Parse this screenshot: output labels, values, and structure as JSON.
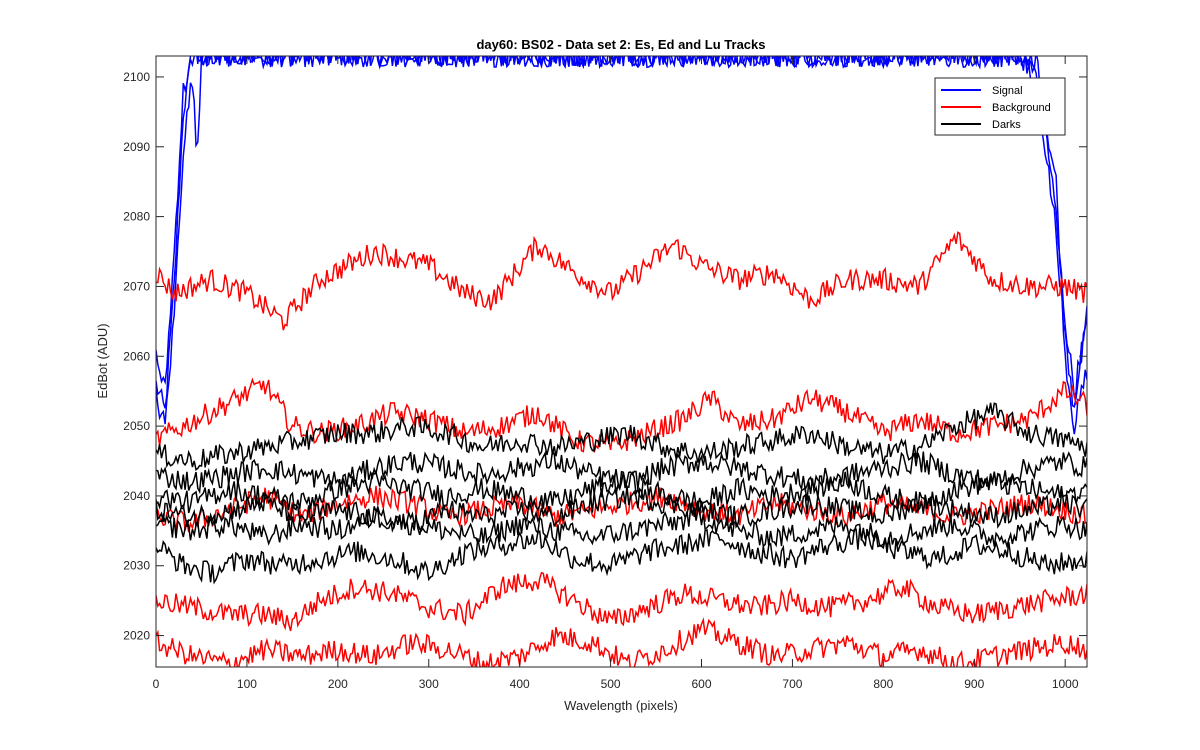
{
  "chart_data": {
    "type": "line",
    "title": "day60: BS02 - Data set 2: Es, Ed and Lu Tracks",
    "xlabel": "Wavelength (pixels)",
    "ylabel": "EdBot (ADU)",
    "xlim": [
      0,
      1024
    ],
    "ylim": [
      2015.5,
      2103
    ],
    "xticks": [
      0,
      100,
      200,
      300,
      400,
      500,
      600,
      700,
      800,
      900,
      1000
    ],
    "yticks": [
      2020,
      2030,
      2040,
      2050,
      2060,
      2070,
      2080,
      2090,
      2100
    ],
    "grid": false,
    "legend": {
      "position": "top-right",
      "entries": [
        {
          "label": "Signal",
          "color": "#0000ff"
        },
        {
          "label": "Background",
          "color": "#ff0000"
        },
        {
          "label": "Darks",
          "color": "#000000"
        }
      ]
    },
    "series": [
      {
        "group": "Signal",
        "color": "#0000ff",
        "x": [
          0,
          10,
          20,
          30,
          40,
          50,
          100,
          500,
          900,
          950,
          970,
          990,
          1000,
          1010,
          1024
        ],
        "y": [
          2056,
          2052,
          2070,
          2095,
          2103,
          2103,
          2103,
          2103,
          2103,
          2103,
          2100,
          2085,
          2060,
          2050,
          2058
        ]
      },
      {
        "group": "Signal",
        "color": "#0000ff",
        "x": [
          0,
          10,
          20,
          30,
          40,
          50,
          100,
          500,
          900,
          950,
          970,
          990,
          1000,
          1010,
          1024
        ],
        "y": [
          2060,
          2055,
          2075,
          2098,
          2103,
          2103,
          2103,
          2103,
          2103,
          2103,
          2102,
          2080,
          2065,
          2055,
          2065
        ]
      },
      {
        "group": "Signal",
        "color": "#0000ff",
        "x": [
          0,
          10,
          20,
          30,
          40,
          45,
          50,
          100,
          500,
          900,
          950,
          970,
          990,
          1000,
          1010,
          1024
        ],
        "y": [
          2054,
          2050,
          2066,
          2090,
          2100,
          2088,
          2103,
          2103,
          2103,
          2103,
          2103,
          2098,
          2078,
          2062,
          2052,
          2068
        ]
      },
      {
        "group": "Background",
        "color": "#ff0000",
        "x": [
          0,
          20,
          60,
          100,
          140,
          180,
          240,
          300,
          340,
          370,
          420,
          460,
          500,
          530,
          570,
          600,
          640,
          680,
          720,
          760,
          800,
          840,
          880,
          920,
          960,
          1000,
          1024
        ],
        "y": [
          2072,
          2069,
          2071,
          2069,
          2065,
          2071,
          2075,
          2073,
          2069,
          2068,
          2076,
          2072,
          2069,
          2072,
          2076,
          2073,
          2071,
          2072,
          2068,
          2071,
          2071,
          2070,
          2077,
          2071,
          2070,
          2070,
          2069
        ]
      },
      {
        "group": "Background",
        "color": "#ff0000",
        "x": [
          0,
          30,
          60,
          90,
          120,
          150,
          180,
          220,
          260,
          300,
          340,
          380,
          420,
          460,
          500,
          540,
          580,
          610,
          640,
          680,
          720,
          760,
          800,
          840,
          880,
          920,
          960,
          1000,
          1024
        ],
        "y": [
          2048,
          2050,
          2052,
          2054,
          2056,
          2050,
          2049,
          2050,
          2052,
          2051,
          2049,
          2050,
          2052,
          2048,
          2047,
          2049,
          2051,
          2054,
          2050,
          2051,
          2054,
          2052,
          2049,
          2051,
          2049,
          2050,
          2051,
          2055,
          2053
        ]
      },
      {
        "group": "Background",
        "color": "#ff0000",
        "x": [
          0,
          40,
          80,
          120,
          160,
          200,
          240,
          280,
          320,
          360,
          400,
          440,
          480,
          520,
          560,
          600,
          640,
          680,
          720,
          760,
          800,
          840,
          880,
          920,
          960,
          1000,
          1024
        ],
        "y": [
          2037,
          2036,
          2038,
          2040,
          2037,
          2039,
          2040,
          2039,
          2037,
          2038,
          2039,
          2037,
          2038,
          2039,
          2040,
          2038,
          2037,
          2039,
          2038,
          2037,
          2039,
          2038,
          2037,
          2038,
          2039,
          2038,
          2037
        ]
      },
      {
        "group": "Background",
        "color": "#ff0000",
        "x": [
          0,
          40,
          80,
          120,
          150,
          180,
          220,
          260,
          300,
          340,
          380,
          420,
          460,
          500,
          540,
          580,
          620,
          660,
          700,
          740,
          780,
          820,
          860,
          900,
          940,
          980,
          1024
        ],
        "y": [
          2025,
          2024,
          2023,
          2023,
          2022,
          2025,
          2027,
          2026,
          2024,
          2023,
          2027,
          2028,
          2025,
          2022,
          2024,
          2026,
          2025,
          2024,
          2025,
          2024,
          2025,
          2027,
          2024,
          2023,
          2024,
          2025,
          2026
        ]
      },
      {
        "group": "Background",
        "color": "#ff0000",
        "x": [
          0,
          40,
          80,
          120,
          160,
          200,
          240,
          280,
          320,
          360,
          400,
          440,
          480,
          520,
          560,
          600,
          640,
          680,
          720,
          760,
          800,
          840,
          880,
          920,
          960,
          1000,
          1024
        ],
        "y": [
          2019,
          2017,
          2016,
          2018,
          2017,
          2018,
          2017,
          2019,
          2018,
          2016,
          2017,
          2020,
          2019,
          2016,
          2018,
          2021,
          2019,
          2017,
          2018,
          2019,
          2017,
          2018,
          2016,
          2017,
          2018,
          2019,
          2018
        ]
      },
      {
        "group": "Darks",
        "color": "#000000",
        "x": [
          0,
          40,
          80,
          120,
          160,
          200,
          240,
          280,
          320,
          360,
          400,
          440,
          480,
          520,
          560,
          600,
          640,
          680,
          720,
          760,
          800,
          840,
          880,
          920,
          960,
          1000,
          1024
        ],
        "y": [
          2046,
          2045,
          2046,
          2047,
          2048,
          2049,
          2049,
          2050,
          2049,
          2047,
          2048,
          2047,
          2048,
          2049,
          2047,
          2046,
          2047,
          2048,
          2049,
          2047,
          2046,
          2047,
          2050,
          2052,
          2049,
          2048,
          2047
        ]
      },
      {
        "group": "Darks",
        "color": "#000000",
        "x": [
          0,
          40,
          80,
          120,
          160,
          200,
          240,
          280,
          320,
          360,
          400,
          440,
          480,
          520,
          560,
          600,
          640,
          680,
          720,
          760,
          800,
          840,
          880,
          920,
          960,
          1000,
          1024
        ],
        "y": [
          2043,
          2042,
          2043,
          2044,
          2043,
          2042,
          2044,
          2045,
          2044,
          2043,
          2044,
          2045,
          2043,
          2042,
          2044,
          2045,
          2044,
          2043,
          2042,
          2043,
          2044,
          2045,
          2043,
          2042,
          2044,
          2045,
          2044
        ]
      },
      {
        "group": "Darks",
        "color": "#000000",
        "x": [
          0,
          40,
          80,
          120,
          160,
          200,
          240,
          280,
          320,
          360,
          400,
          440,
          480,
          520,
          560,
          600,
          640,
          680,
          720,
          760,
          800,
          840,
          880,
          920,
          960,
          1000,
          1024
        ],
        "y": [
          2040,
          2039,
          2041,
          2040,
          2039,
          2041,
          2042,
          2041,
          2040,
          2041,
          2040,
          2039,
          2041,
          2042,
          2040,
          2039,
          2041,
          2040,
          2041,
          2042,
          2040,
          2039,
          2041,
          2042,
          2041,
          2040,
          2041
        ]
      },
      {
        "group": "Darks",
        "color": "#000000",
        "x": [
          0,
          40,
          80,
          120,
          160,
          200,
          240,
          280,
          320,
          360,
          400,
          440,
          480,
          520,
          560,
          600,
          640,
          680,
          720,
          760,
          800,
          840,
          880,
          920,
          960,
          1000,
          1024
        ],
        "y": [
          2038,
          2037,
          2038,
          2039,
          2037,
          2038,
          2037,
          2036,
          2038,
          2037,
          2038,
          2037,
          2039,
          2040,
          2039,
          2038,
          2037,
          2038,
          2039,
          2038,
          2037,
          2039,
          2038,
          2037,
          2038,
          2039,
          2038
        ]
      },
      {
        "group": "Darks",
        "color": "#000000",
        "x": [
          0,
          40,
          80,
          120,
          160,
          200,
          240,
          280,
          320,
          360,
          400,
          440,
          480,
          520,
          560,
          600,
          640,
          680,
          720,
          760,
          800,
          840,
          880,
          920,
          960,
          1000,
          1024
        ],
        "y": [
          2036,
          2035,
          2036,
          2034,
          2036,
          2035,
          2037,
          2036,
          2035,
          2034,
          2036,
          2035,
          2034,
          2035,
          2036,
          2037,
          2035,
          2034,
          2035,
          2036,
          2034,
          2035,
          2036,
          2034,
          2035,
          2036,
          2035
        ]
      },
      {
        "group": "Darks",
        "color": "#000000",
        "x": [
          0,
          30,
          60,
          100,
          140,
          180,
          220,
          260,
          300,
          340,
          380,
          420,
          460,
          500,
          540,
          580,
          620,
          660,
          700,
          740,
          780,
          820,
          860,
          900,
          940,
          980,
          1024
        ],
        "y": [
          2033,
          2030,
          2029,
          2031,
          2030,
          2031,
          2032,
          2031,
          2029,
          2032,
          2033,
          2034,
          2031,
          2030,
          2032,
          2033,
          2034,
          2032,
          2031,
          2033,
          2034,
          2032,
          2031,
          2033,
          2032,
          2030,
          2031
        ]
      }
    ]
  }
}
